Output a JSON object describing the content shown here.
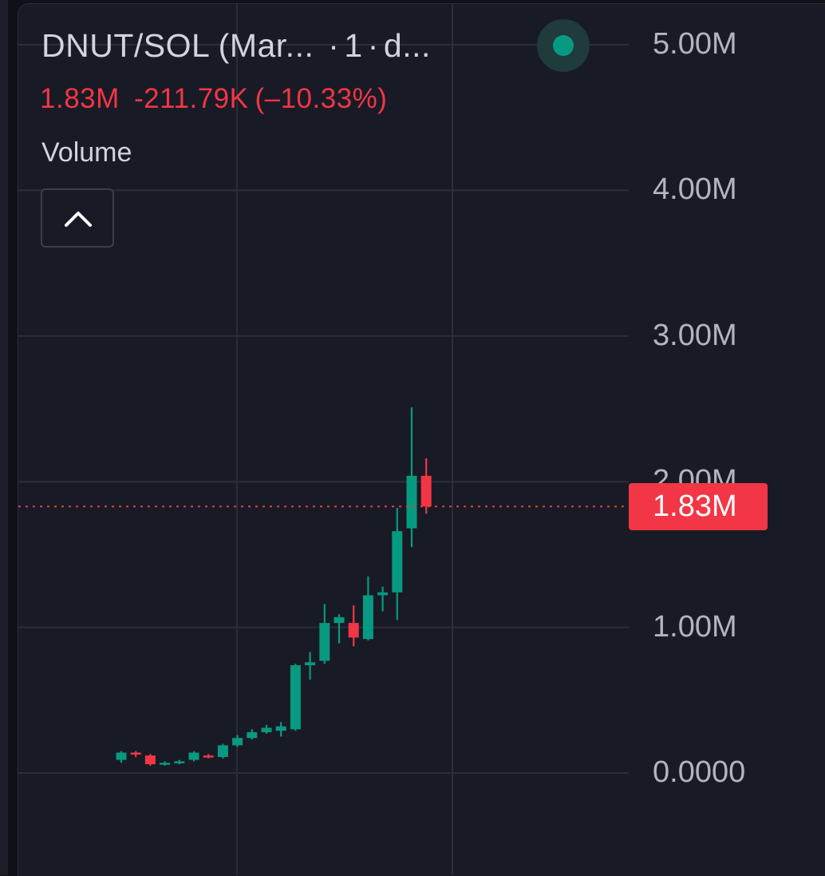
{
  "header": {
    "symbol": "DNUT/SOL (Mar...",
    "interval": "1",
    "timeframe_abbr": "d...",
    "separator": "·"
  },
  "legend": {
    "last_value": "1.83M",
    "change": "-211.79K",
    "change_percent": "(–10.33%)",
    "indicator_label": "Volume"
  },
  "colors": {
    "up": "#089981",
    "down": "#f23645",
    "text": "#d1d4dc",
    "axis_text": "#b2b5be",
    "grid": "#2a2e39",
    "background": "#181b25"
  },
  "icons": {
    "status": "status-dot-icon",
    "collapse": "chevron-up-icon"
  },
  "chart_data": {
    "type": "candlestick",
    "y_ticks": [
      "5.00M",
      "4.00M",
      "3.00M",
      "2.00M",
      "1.00M",
      "0.0000"
    ],
    "y_tick_values": [
      5000000,
      4000000,
      3000000,
      2000000,
      1000000,
      0
    ],
    "ylim": [
      0,
      5000000
    ],
    "last_price_label": "1.83M",
    "last_price": 1830000,
    "grid": true,
    "candles": [
      {
        "o": 90000,
        "h": 150000,
        "l": 70000,
        "c": 140000
      },
      {
        "o": 140000,
        "h": 150000,
        "l": 110000,
        "c": 130000
      },
      {
        "o": 120000,
        "h": 130000,
        "l": 50000,
        "c": 60000
      },
      {
        "o": 60000,
        "h": 80000,
        "l": 50000,
        "c": 70000
      },
      {
        "o": 70000,
        "h": 90000,
        "l": 60000,
        "c": 80000
      },
      {
        "o": 90000,
        "h": 150000,
        "l": 80000,
        "c": 140000
      },
      {
        "o": 120000,
        "h": 130000,
        "l": 100000,
        "c": 110000
      },
      {
        "o": 110000,
        "h": 200000,
        "l": 100000,
        "c": 190000
      },
      {
        "o": 190000,
        "h": 260000,
        "l": 180000,
        "c": 240000
      },
      {
        "o": 240000,
        "h": 300000,
        "l": 230000,
        "c": 280000
      },
      {
        "o": 280000,
        "h": 330000,
        "l": 270000,
        "c": 310000
      },
      {
        "o": 290000,
        "h": 350000,
        "l": 250000,
        "c": 320000
      },
      {
        "o": 300000,
        "h": 750000,
        "l": 290000,
        "c": 740000
      },
      {
        "o": 740000,
        "h": 830000,
        "l": 640000,
        "c": 760000
      },
      {
        "o": 770000,
        "h": 1160000,
        "l": 750000,
        "c": 1030000
      },
      {
        "o": 1030000,
        "h": 1090000,
        "l": 890000,
        "c": 1070000
      },
      {
        "o": 1030000,
        "h": 1150000,
        "l": 870000,
        "c": 930000
      },
      {
        "o": 920000,
        "h": 1350000,
        "l": 910000,
        "c": 1220000
      },
      {
        "o": 1220000,
        "h": 1280000,
        "l": 1110000,
        "c": 1240000
      },
      {
        "o": 1240000,
        "h": 1820000,
        "l": 1050000,
        "c": 1660000
      },
      {
        "o": 1680000,
        "h": 2510000,
        "l": 1550000,
        "c": 2040000
      },
      {
        "o": 2040000,
        "h": 2160000,
        "l": 1780000,
        "c": 1830000
      }
    ]
  }
}
